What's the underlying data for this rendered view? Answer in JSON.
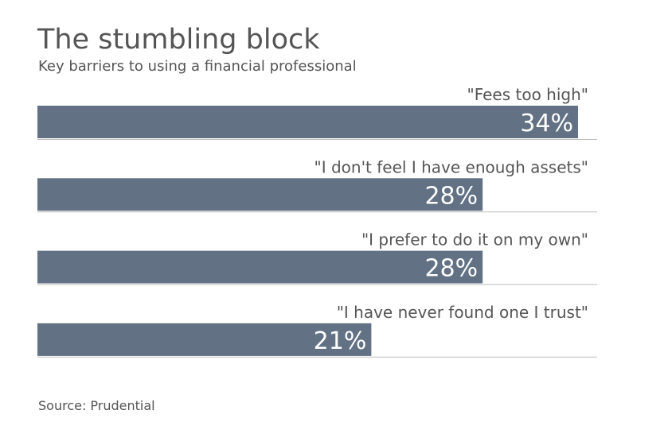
{
  "title": "The stumbling block",
  "subtitle": "Key barriers to using a financial professional",
  "source": "Source: Prudential",
  "colors": {
    "bar": "#627183",
    "text": "#555555",
    "rule": "#bbbbbb",
    "label_on_bar": "#ffffff"
  },
  "chart_data": {
    "type": "bar",
    "orientation": "horizontal",
    "categories": [
      "\"Fees too high\"",
      "\"I don't feel I have enough assets\"",
      "\"I prefer to do it on my own\"",
      "\"I have never found one I trust\""
    ],
    "values": [
      34,
      28,
      28,
      21
    ],
    "value_labels": [
      "34%",
      "28%",
      "28%",
      "21%"
    ],
    "unit": "%",
    "xlim": [
      0,
      35
    ],
    "grid": false
  }
}
